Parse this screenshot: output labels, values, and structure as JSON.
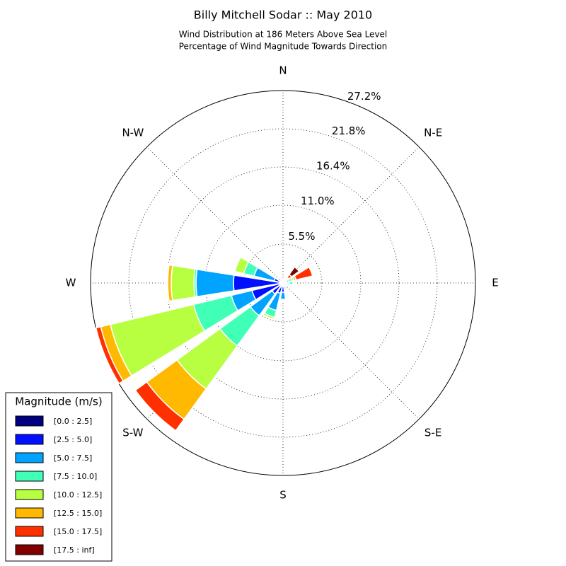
{
  "chart_data": {
    "type": "windrose",
    "title": "Billy Mitchell Sodar :: May 2010",
    "subtitle": [
      "Wind Distribution at 186 Meters Above Sea Level",
      "Percentage of Wind Magnitude Towards Direction"
    ],
    "categories": [
      "N",
      null,
      "N-E",
      null,
      "E",
      null,
      "S-E",
      null,
      "S",
      null,
      "S-W",
      null,
      "W",
      null,
      "N-W",
      null
    ],
    "rlim": [
      0,
      27.2
    ],
    "rticks": [
      {
        "value": 5.5,
        "label": "5.5%"
      },
      {
        "value": 11.0,
        "label": "11.0%"
      },
      {
        "value": 16.4,
        "label": "16.4%"
      },
      {
        "value": 21.8,
        "label": "21.8%"
      },
      {
        "value": 27.2,
        "label": "27.2%"
      }
    ],
    "grid": true,
    "legend_title": "Magnitude (m/s)",
    "legend_position": "lower left",
    "series": [
      {
        "name": "[0.0 : 2.5]",
        "color": "#000080",
        "values": [
          0.1,
          0.1,
          0.1,
          0.2,
          0.2,
          0.1,
          0.1,
          0.2,
          0.3,
          0.3,
          0.4,
          0.5,
          0.5,
          0.3,
          0.2,
          0.1
        ]
      },
      {
        "name": "[2.5 : 5.0]",
        "color": "#0010ff",
        "values": [
          0.2,
          0.2,
          0.2,
          0.3,
          0.3,
          0.2,
          0.2,
          0.4,
          1.0,
          1.2,
          1.5,
          4.0,
          6.5,
          1.0,
          0.4,
          0.2
        ]
      },
      {
        "name": "[5.0 : 7.5]",
        "color": "#00a4ff",
        "values": [
          0.1,
          0.2,
          0.2,
          0.4,
          0.4,
          0.2,
          0.1,
          0.3,
          1.0,
          2.5,
          3.8,
          3.0,
          5.3,
          2.9,
          0.3,
          0.1
        ]
      },
      {
        "name": "[7.5 : 10.0]",
        "color": "#40ffb7",
        "values": [
          0,
          0.1,
          0.2,
          0.4,
          0.5,
          0.1,
          0,
          0.1,
          0.2,
          1.0,
          5.3,
          5.5,
          0.3,
          1.5,
          0.1,
          0
        ]
      },
      {
        "name": "[10.0 : 12.5]",
        "color": "#b7ff40",
        "values": [
          0,
          0,
          0.1,
          0.3,
          0.2,
          0,
          0,
          0,
          0,
          0.3,
          7.5,
          12.1,
          3.2,
          1.3,
          0,
          0
        ]
      },
      {
        "name": "[12.5 : 15.0]",
        "color": "#ffb900",
        "values": [
          0,
          0,
          0.2,
          0.3,
          0,
          0,
          0,
          0,
          0,
          0,
          5.3,
          1.4,
          0.5,
          0,
          0,
          0
        ]
      },
      {
        "name": "[15.0 : 17.5]",
        "color": "#ff3000",
        "values": [
          0,
          0,
          0.5,
          2.4,
          0,
          0,
          0,
          0,
          0,
          0,
          2.0,
          0.7,
          0.1,
          0,
          0,
          0
        ]
      },
      {
        "name": "[17.5 : inf]",
        "color": "#800000",
        "values": [
          0,
          0,
          1.3,
          0,
          0,
          0,
          0,
          0,
          0,
          0,
          0,
          0,
          0,
          0,
          0,
          0
        ]
      }
    ]
  }
}
